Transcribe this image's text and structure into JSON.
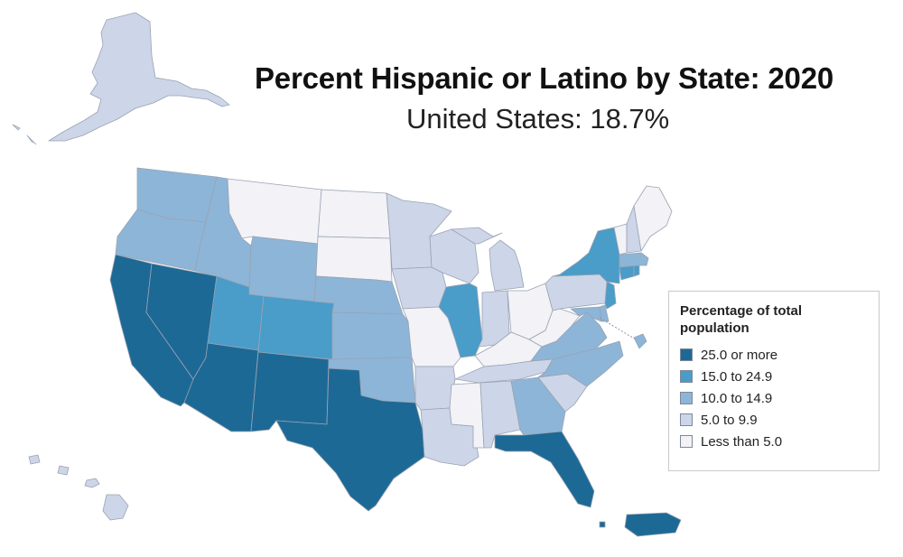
{
  "title": "Percent Hispanic or Latino by State: 2020",
  "subtitle": "United States: 18.7%",
  "legend": {
    "title": "Percentage of total population",
    "items": [
      {
        "label": "25.0 or more",
        "color": "#1d6996"
      },
      {
        "label": "15.0 to 24.9",
        "color": "#4a9cc9"
      },
      {
        "label": "10.0 to 14.9",
        "color": "#8db5d7"
      },
      {
        "label": "5.0 to 9.9",
        "color": "#cdd5e8"
      },
      {
        "label": "Less than 5.0",
        "color": "#f2f2f7"
      }
    ]
  },
  "classes": [
    "25.0 or more",
    "15.0 to 24.9",
    "10.0 to 14.9",
    "5.0 to 9.9",
    "Less than 5.0"
  ],
  "regions": [
    {
      "name": "Alaska",
      "class": 3
    },
    {
      "name": "Hawaii",
      "class": 3
    },
    {
      "name": "Washington",
      "class": 2
    },
    {
      "name": "Oregon",
      "class": 2
    },
    {
      "name": "California",
      "class": 0
    },
    {
      "name": "Nevada",
      "class": 0
    },
    {
      "name": "Idaho",
      "class": 2
    },
    {
      "name": "Montana",
      "class": 4
    },
    {
      "name": "Wyoming",
      "class": 2
    },
    {
      "name": "Utah",
      "class": 1
    },
    {
      "name": "Arizona",
      "class": 0
    },
    {
      "name": "Colorado",
      "class": 1
    },
    {
      "name": "New Mexico",
      "class": 0
    },
    {
      "name": "North Dakota",
      "class": 4
    },
    {
      "name": "South Dakota",
      "class": 4
    },
    {
      "name": "Nebraska",
      "class": 2
    },
    {
      "name": "Kansas",
      "class": 2
    },
    {
      "name": "Oklahoma",
      "class": 2
    },
    {
      "name": "Texas",
      "class": 0
    },
    {
      "name": "Minnesota",
      "class": 3
    },
    {
      "name": "Iowa",
      "class": 3
    },
    {
      "name": "Missouri",
      "class": 4
    },
    {
      "name": "Arkansas",
      "class": 3
    },
    {
      "name": "Louisiana",
      "class": 3
    },
    {
      "name": "Wisconsin",
      "class": 3
    },
    {
      "name": "Illinois",
      "class": 1
    },
    {
      "name": "Michigan",
      "class": 3
    },
    {
      "name": "Indiana",
      "class": 3
    },
    {
      "name": "Ohio",
      "class": 4
    },
    {
      "name": "Kentucky",
      "class": 4
    },
    {
      "name": "Tennessee",
      "class": 3
    },
    {
      "name": "Mississippi",
      "class": 4
    },
    {
      "name": "Alabama",
      "class": 3
    },
    {
      "name": "Georgia",
      "class": 2
    },
    {
      "name": "Florida",
      "class": 0
    },
    {
      "name": "South Carolina",
      "class": 3
    },
    {
      "name": "North Carolina",
      "class": 2
    },
    {
      "name": "Virginia",
      "class": 2
    },
    {
      "name": "West Virginia",
      "class": 4
    },
    {
      "name": "Pennsylvania",
      "class": 3
    },
    {
      "name": "New York",
      "class": 1
    },
    {
      "name": "New Jersey",
      "class": 1
    },
    {
      "name": "Delaware",
      "class": 2
    },
    {
      "name": "Maryland",
      "class": 2
    },
    {
      "name": "District of Columbia",
      "class": 2
    },
    {
      "name": "Connecticut",
      "class": 1
    },
    {
      "name": "Rhode Island",
      "class": 1
    },
    {
      "name": "Massachusetts",
      "class": 2
    },
    {
      "name": "Vermont",
      "class": 4
    },
    {
      "name": "New Hampshire",
      "class": 3
    },
    {
      "name": "Maine",
      "class": 4
    },
    {
      "name": "Puerto Rico",
      "class": 0
    }
  ]
}
